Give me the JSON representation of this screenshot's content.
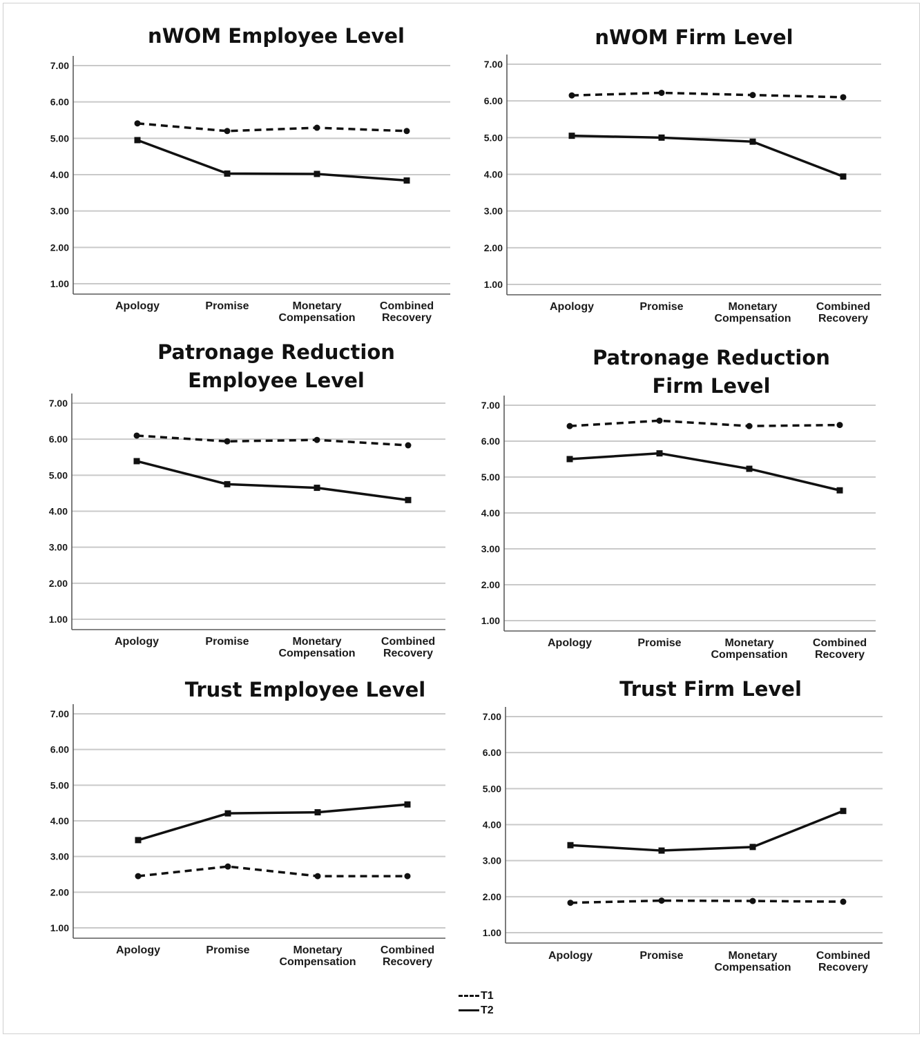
{
  "legend": {
    "t1_label": "T1",
    "t2_label": "T2"
  },
  "chart_data": [
    {
      "type": "line",
      "title": [
        "nWOM Employee Level"
      ],
      "categories": [
        [
          "Apology"
        ],
        [
          "Promise"
        ],
        [
          "Monetary",
          "Compensation"
        ],
        [
          "Combined",
          "Recovery"
        ]
      ],
      "yticks": [
        "1.00",
        "2.00",
        "3.00",
        "4.00",
        "5.00",
        "6.00",
        "7.00"
      ],
      "ylim": [
        1,
        7
      ],
      "grid": true,
      "series": [
        {
          "name": "T1",
          "style": "dashed",
          "marker": "circle",
          "values": [
            5.41,
            5.2,
            5.29,
            5.2
          ]
        },
        {
          "name": "T2",
          "style": "solid",
          "marker": "square",
          "values": [
            4.95,
            4.03,
            4.02,
            3.84
          ]
        }
      ]
    },
    {
      "type": "line",
      "title": [
        "nWOM Firm Level"
      ],
      "categories": [
        [
          "Apology"
        ],
        [
          "Promise"
        ],
        [
          "Monetary",
          "Compensation"
        ],
        [
          "Combined",
          "Recovery"
        ]
      ],
      "yticks": [
        "1.00",
        "2.00",
        "3.00",
        "4.00",
        "5.00",
        "6.00",
        "7.00"
      ],
      "ylim": [
        1,
        7
      ],
      "grid": true,
      "series": [
        {
          "name": "T1",
          "style": "dashed",
          "marker": "circle",
          "values": [
            6.15,
            6.22,
            6.16,
            6.1
          ]
        },
        {
          "name": "T2",
          "style": "solid",
          "marker": "square",
          "values": [
            5.05,
            5.0,
            4.89,
            3.94
          ]
        }
      ]
    },
    {
      "type": "line",
      "title": [
        "Patronage Reduction",
        "Employee Level"
      ],
      "categories": [
        [
          "Apology"
        ],
        [
          "Promise"
        ],
        [
          "Monetary",
          "Compensation"
        ],
        [
          "Combined",
          "Recovery"
        ]
      ],
      "yticks": [
        "1.00",
        "2.00",
        "3.00",
        "4.00",
        "5.00",
        "6.00",
        "7.00"
      ],
      "ylim": [
        1,
        7
      ],
      "grid": true,
      "series": [
        {
          "name": "T1",
          "style": "dashed",
          "marker": "circle",
          "values": [
            6.1,
            5.94,
            5.98,
            5.83
          ]
        },
        {
          "name": "T2",
          "style": "solid",
          "marker": "square",
          "values": [
            5.39,
            4.75,
            4.65,
            4.31
          ]
        }
      ]
    },
    {
      "type": "line",
      "title": [
        "Patronage Reduction",
        "Firm Level"
      ],
      "categories": [
        [
          "Apology"
        ],
        [
          "Promise"
        ],
        [
          "Monetary",
          "Compensation"
        ],
        [
          "Combined",
          "Recovery"
        ]
      ],
      "yticks": [
        "1.00",
        "2.00",
        "3.00",
        "4.00",
        "5.00",
        "6.00",
        "7.00"
      ],
      "ylim": [
        1,
        7
      ],
      "grid": true,
      "series": [
        {
          "name": "T1",
          "style": "dashed",
          "marker": "circle",
          "values": [
            6.42,
            6.57,
            6.42,
            6.45
          ]
        },
        {
          "name": "T2",
          "style": "solid",
          "marker": "square",
          "values": [
            5.5,
            5.66,
            5.23,
            4.63
          ]
        }
      ]
    },
    {
      "type": "line",
      "title": [
        "Trust Employee Level"
      ],
      "categories": [
        [
          "Apology"
        ],
        [
          "Promise"
        ],
        [
          "Monetary",
          "Compensation"
        ],
        [
          "Combined",
          "Recovery"
        ]
      ],
      "yticks": [
        "1.00",
        "2.00",
        "3.00",
        "4.00",
        "5.00",
        "6.00",
        "7.00"
      ],
      "ylim": [
        1,
        7
      ],
      "grid": true,
      "series": [
        {
          "name": "T1",
          "style": "dashed",
          "marker": "circle",
          "values": [
            2.45,
            2.72,
            2.45,
            2.45
          ]
        },
        {
          "name": "T2",
          "style": "solid",
          "marker": "square",
          "values": [
            3.46,
            4.21,
            4.24,
            4.46
          ]
        }
      ]
    },
    {
      "type": "line",
      "title": [
        "Trust Firm Level"
      ],
      "categories": [
        [
          "Apology"
        ],
        [
          "Promise"
        ],
        [
          "Monetary",
          "Compensation"
        ],
        [
          "Combined",
          "Recovery"
        ]
      ],
      "yticks": [
        "1.00",
        "2.00",
        "3.00",
        "4.00",
        "5.00",
        "6.00",
        "7.00"
      ],
      "ylim": [
        1,
        7
      ],
      "grid": true,
      "series": [
        {
          "name": "T1",
          "style": "dashed",
          "marker": "circle",
          "values": [
            1.83,
            1.89,
            1.88,
            1.86
          ]
        },
        {
          "name": "T2",
          "style": "solid",
          "marker": "square",
          "values": [
            3.43,
            3.28,
            3.38,
            4.38
          ]
        }
      ]
    }
  ]
}
